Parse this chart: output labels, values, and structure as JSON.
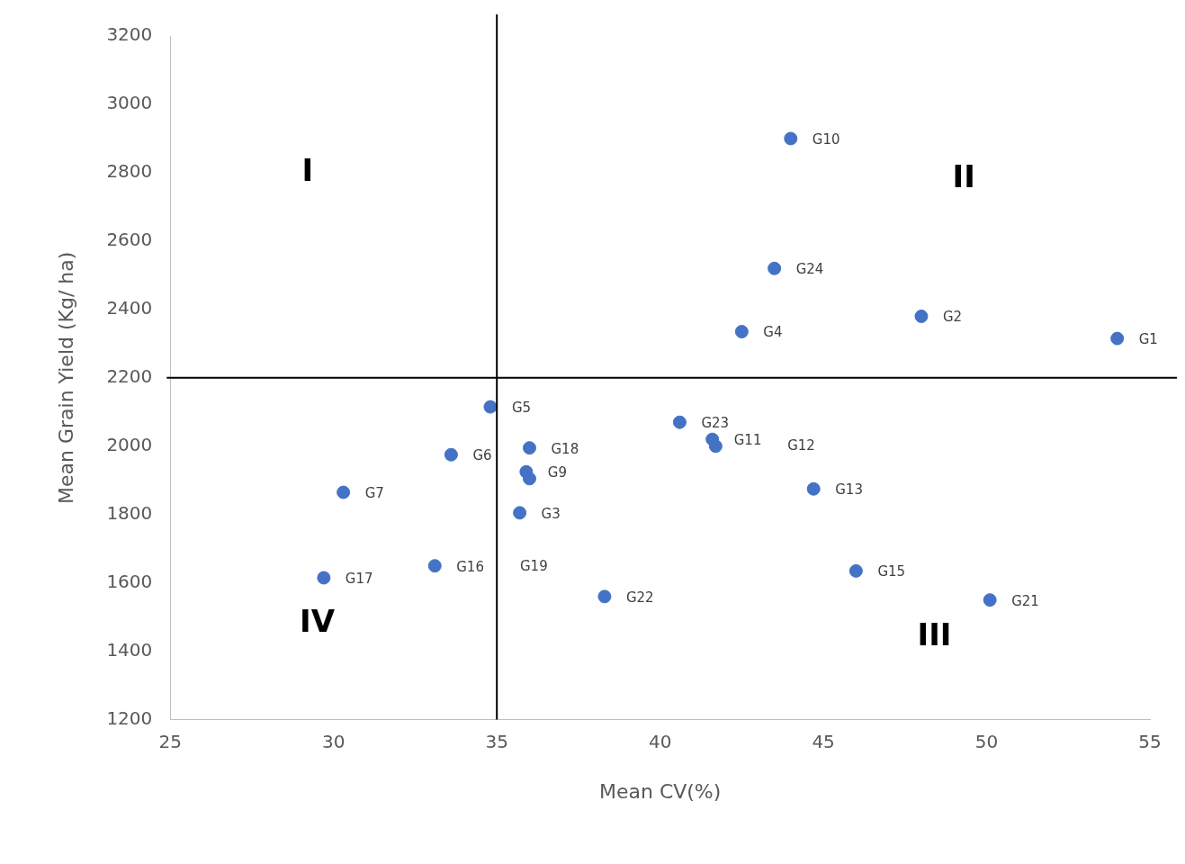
{
  "chart_data": {
    "type": "scatter",
    "xlabel": "Mean CV(%)",
    "ylabel": "Mean Grain Yield (Kg/ ha)",
    "xlim": [
      25,
      55
    ],
    "xticks": [
      25,
      30,
      35,
      40,
      45,
      50,
      55
    ],
    "ylim": [
      1200,
      3200
    ],
    "yticks": [
      1200,
      1400,
      1600,
      1800,
      2000,
      2200,
      2400,
      2600,
      2800,
      3000,
      3200
    ],
    "grid": false,
    "legend": false,
    "marker": "circle",
    "series": [
      {
        "color": "#4472c4",
        "x": [
          54.0,
          48.0,
          35.7,
          42.5,
          34.8,
          33.6,
          30.3,
          41.7,
          35.9,
          36.0,
          44.0,
          41.6,
          44.7,
          46.0,
          33.1,
          29.7,
          36.0,
          50.1,
          38.3,
          40.6,
          43.5
        ],
        "values": [
          2315,
          2380,
          1805,
          2335,
          2115,
          1975,
          1865,
          2000,
          1925,
          1905,
          2900,
          2020,
          1875,
          1635,
          1650,
          1615,
          1995,
          1550,
          1560,
          2070,
          2520
        ]
      }
    ],
    "ref_lines": [
      {
        "axis": "x",
        "value": 35,
        "color": "#000000"
      },
      {
        "axis": "y",
        "value": 2200,
        "color": "#000000"
      }
    ],
    "annotations": [
      "I",
      "II",
      "III",
      "IV",
      {
        "text": "G1",
        "x": 54.0,
        "y": 2315
      },
      {
        "text": "G2",
        "x": 48.0,
        "y": 2380
      },
      {
        "text": "G3",
        "x": 35.7,
        "y": 1805
      },
      {
        "text": "G4",
        "x": 42.5,
        "y": 2335
      },
      {
        "text": "G5",
        "x": 34.8,
        "y": 2115
      },
      {
        "text": "G6",
        "x": 33.6,
        "y": 1975
      },
      {
        "text": "G7",
        "x": 30.3,
        "y": 1865
      },
      {
        "text": "G9",
        "x": 35.9,
        "y": 1925
      },
      {
        "text": "G10",
        "x": 44.0,
        "y": 2900
      },
      {
        "text": "G11",
        "x": 41.6,
        "y": 2020
      },
      "G12",
      {
        "text": "G13",
        "x": 44.7,
        "y": 1875
      },
      {
        "text": "G15",
        "x": 46.0,
        "y": 1635
      },
      {
        "text": "G16",
        "x": 33.1,
        "y": 1650
      },
      {
        "text": "G17",
        "x": 29.7,
        "y": 1615
      },
      {
        "text": "G18",
        "x": 36.0,
        "y": 1995
      },
      "G19",
      {
        "text": "G21",
        "x": 50.1,
        "y": 1550
      },
      {
        "text": "G22",
        "x": 38.3,
        "y": 1560
      },
      {
        "text": "G23",
        "x": 40.6,
        "y": 2070
      },
      {
        "text": "G24",
        "x": 43.5,
        "y": 2520
      }
    ]
  }
}
